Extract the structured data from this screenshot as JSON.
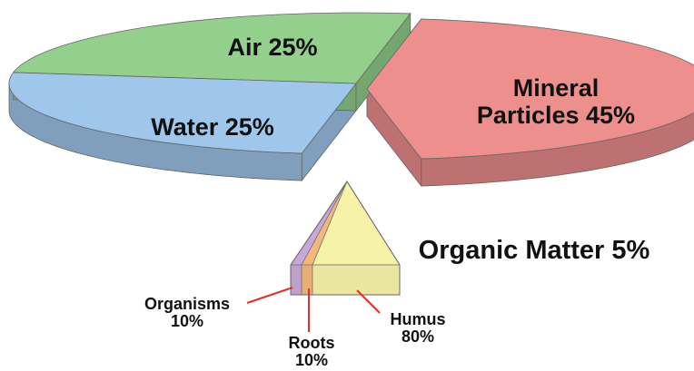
{
  "chart_data": [
    {
      "type": "pie",
      "categories": [
        "Mineral Particles",
        "Organic Matter",
        "Water",
        "Air"
      ],
      "values": [
        45,
        5,
        25,
        25
      ],
      "value_labels": [
        "45%",
        "5%",
        "25%",
        "25%"
      ],
      "colors": [
        "#ec8f8d",
        "#f6f2a8",
        "#9fc7ec",
        "#93d08c"
      ]
    },
    {
      "type": "wedge",
      "categories": [
        "Organisms",
        "Roots",
        "Humus"
      ],
      "values": [
        10,
        10,
        80
      ],
      "value_labels": [
        "10%",
        "10%",
        "80%"
      ],
      "colors": [
        "#c8a8d8",
        "#f3b77c",
        "#f6f2a8"
      ]
    }
  ]
}
